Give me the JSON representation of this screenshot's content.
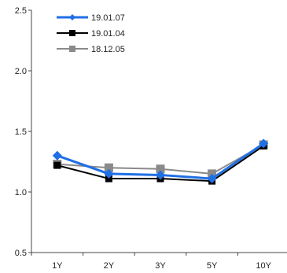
{
  "chart_data": {
    "type": "line",
    "title": "",
    "xlabel": "",
    "ylabel": "",
    "categories": [
      "1Y",
      "2Y",
      "3Y",
      "5Y",
      "10Y"
    ],
    "ylim": [
      0.5,
      2.5
    ],
    "yticks": [
      "0.5",
      "1.0",
      "1.5",
      "2.0",
      "2.5"
    ],
    "grid": false,
    "legend_position": "top-left",
    "series": [
      {
        "name": "19.01.07",
        "values": [
          1.3,
          1.15,
          1.14,
          1.11,
          1.4
        ],
        "color": "#1f6fe5",
        "marker": "diamond"
      },
      {
        "name": "19.01.04",
        "values": [
          1.22,
          1.11,
          1.11,
          1.09,
          1.38
        ],
        "color": "#000000",
        "marker": "square"
      },
      {
        "name": "18.12.05",
        "values": [
          1.23,
          1.2,
          1.19,
          1.15,
          1.39
        ],
        "color": "#8a8a8a",
        "marker": "square"
      }
    ]
  }
}
